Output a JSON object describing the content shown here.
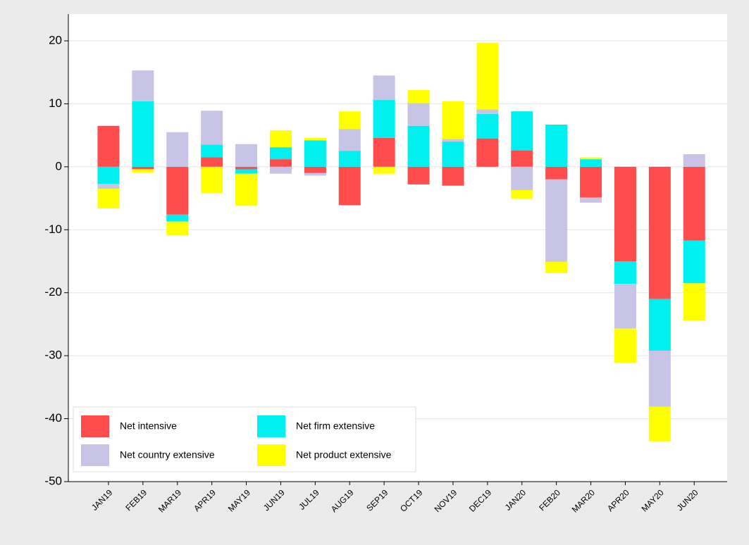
{
  "chart_data": {
    "type": "bar",
    "stacked": true,
    "categories": [
      "JAN19",
      "FEB19",
      "MAR19",
      "APR19",
      "MAY19",
      "JUN19",
      "JUL19",
      "AUG19",
      "SEP19",
      "OCT19",
      "NOV19",
      "DEC19",
      "JAN20",
      "FEB20",
      "MAR20",
      "APR20",
      "MAY20",
      "JUN20"
    ],
    "series": [
      {
        "name": "Net intensive",
        "color": "#ff4d4d",
        "values": [
          6.5,
          -0.4,
          -7.6,
          1.5,
          -0.4,
          1.2,
          -1.0,
          -6.1,
          4.6,
          -2.8,
          -3.0,
          4.5,
          2.6,
          -2.0,
          -4.9,
          -15.0,
          -21.0,
          -11.7
        ]
      },
      {
        "name": "Net firm extensive",
        "color": "#00f0f0",
        "values": [
          -2.7,
          10.4,
          -1.1,
          2.0,
          -0.7,
          1.9,
          4.2,
          2.5,
          6.0,
          6.5,
          4.0,
          3.9,
          6.2,
          6.7,
          1.2,
          -3.6,
          -8.2,
          -6.8
        ]
      },
      {
        "name": "Net country extensive",
        "color": "#c8c4e6",
        "values": [
          -0.8,
          4.9,
          5.5,
          5.4,
          3.6,
          -1.1,
          -0.4,
          3.5,
          3.9,
          3.6,
          0.4,
          0.7,
          -3.7,
          -13.1,
          -0.8,
          -7.1,
          -8.9,
          2.0
        ]
      },
      {
        "name": "Net product extensive",
        "color": "#ffff00",
        "values": [
          -3.1,
          -0.5,
          -2.2,
          -4.2,
          -5.1,
          2.7,
          0.4,
          2.8,
          -1.1,
          2.1,
          6.0,
          10.6,
          -1.4,
          -1.8,
          0.3,
          -5.4,
          -5.5,
          -5.9
        ]
      }
    ],
    "ylim": [
      -50,
      23
    ],
    "yticks": [
      -50,
      -40,
      -30,
      -20,
      -10,
      0,
      10,
      20
    ],
    "grid": true,
    "legend": "lower left"
  }
}
